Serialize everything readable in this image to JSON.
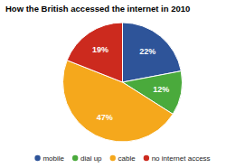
{
  "chart_data": {
    "type": "pie",
    "title": "How the British accessed the internet in 2010",
    "categories": [
      "mobile",
      "dial up",
      "cable",
      "no internet access"
    ],
    "values": [
      22,
      12,
      47,
      19
    ],
    "value_labels": [
      "22%",
      "12%",
      "47%",
      "19%"
    ],
    "colors": [
      "#2e5499",
      "#4aaa3c",
      "#f5a81c",
      "#cc2a1e"
    ],
    "data_labels": true,
    "legend": "bottom"
  }
}
